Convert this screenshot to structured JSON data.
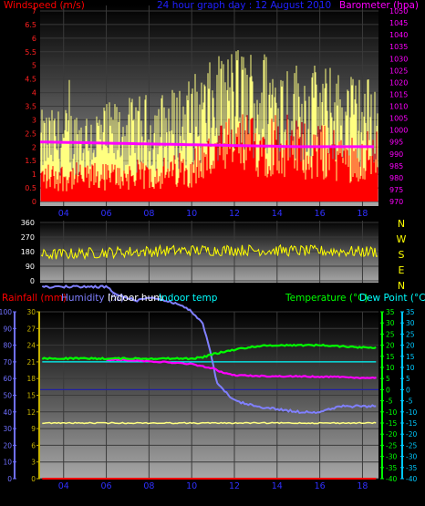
{
  "colors": {
    "wind_avg": "#ff0000",
    "wind_gust": "#ffff80",
    "barometer": "#ff00ff",
    "direction": "#ffff00",
    "rainfall": "#ff0000",
    "humidity": "#8080ff",
    "indoor_hum": "#ffff80",
    "indoor_temp": "#00ffff",
    "temperature": "#00ff00",
    "dew_point": "#ff00ff",
    "rain_axis": "#7070ff",
    "hum_axis": "#c8b400",
    "temp_axis": "#00ff00",
    "dew_axis": "#00c8ff",
    "compass": "#ffff00"
  },
  "chart_data": [
    {
      "type": "bar",
      "title": "24 hour graph day : 12 August 2010",
      "ylabel": "Windspeed (m/s)",
      "y2label": "Barometer (hpa)",
      "x_ticks": [
        "04",
        "06",
        "08",
        "10",
        "12",
        "14",
        "16",
        "18"
      ],
      "ylim": [
        0,
        7
      ],
      "y_ticks": [
        "0",
        "0.5",
        "1",
        "1.5",
        "2",
        "2.5",
        "3",
        "3.5",
        "4",
        "4.5",
        "5",
        "5.5",
        "6",
        "6.5",
        "7"
      ],
      "y2lim": [
        970,
        1050
      ],
      "y2_ticks": [
        "970",
        "975",
        "980",
        "985",
        "990",
        "995",
        "1000",
        "1005",
        "1010",
        "1015",
        "1020",
        "1025",
        "1030",
        "1035",
        "1040",
        "1045",
        "1050"
      ],
      "grid": true,
      "series": [
        {
          "name": "Windspeed",
          "hours": [
            3,
            6,
            9,
            10,
            11,
            12,
            13,
            14,
            15,
            16,
            17,
            18
          ],
          "values": [
            1.2,
            1.2,
            1.4,
            1.7,
            2.2,
            2.7,
            2.8,
            2.9,
            2.6,
            2.4,
            2.3,
            2.2
          ]
        },
        {
          "name": "Gust",
          "hours": [
            3,
            6,
            9,
            10,
            11,
            12,
            13,
            14,
            15,
            16,
            17,
            18
          ],
          "values": [
            2.6,
            2.8,
            3.2,
            3.6,
            4.0,
            4.5,
            4.4,
            4.3,
            4.0,
            3.9,
            3.8,
            3.6
          ]
        },
        {
          "name": "Barometer",
          "hours": [
            3,
            6,
            9,
            12,
            15,
            18
          ],
          "values": [
            995,
            994.5,
            994,
            993.5,
            993,
            993
          ]
        }
      ]
    },
    {
      "type": "line",
      "ylabel_stack": [
        "N",
        "W",
        "S",
        "E",
        "N"
      ],
      "x_ticks": [
        "04",
        "06",
        "08",
        "10",
        "12",
        "14",
        "16",
        "18"
      ],
      "ylim": [
        0,
        360
      ],
      "y_ticks": [
        "0",
        "90",
        "180",
        "270",
        "360"
      ],
      "series": [
        {
          "name": "Wind direction",
          "hours": [
            3,
            6,
            9,
            12,
            15,
            18
          ],
          "values": [
            160,
            175,
            185,
            190,
            185,
            180
          ]
        }
      ]
    },
    {
      "type": "line",
      "legend": [
        "Rainfall (mm)",
        "Humidity (%)",
        "Indoor hum",
        "Indoor temp",
        "Temperature (°C)",
        "Dew Point (°C)"
      ],
      "x_ticks": [
        "04",
        "06",
        "08",
        "10",
        "12",
        "14",
        "16",
        "18"
      ],
      "rain_ticks": [
        "0",
        "10",
        "20",
        "30",
        "40",
        "50",
        "60",
        "70",
        "80",
        "90",
        "100"
      ],
      "hum_ticks": [
        "0",
        "3",
        "6",
        "9",
        "12",
        "15",
        "18",
        "21",
        "24",
        "27",
        "30"
      ],
      "temp_ticks": [
        "-40",
        "-35",
        "-30",
        "-25",
        "-20",
        "-15",
        "-10",
        "-5",
        "0",
        "5",
        "10",
        "15",
        "20",
        "25",
        "30",
        "35"
      ],
      "dew_ticks": [
        "-40",
        "-35",
        "-30",
        "-25",
        "-20",
        "-15",
        "-10",
        "-5",
        "0",
        "5",
        "10",
        "15",
        "20",
        "25",
        "30",
        "35"
      ],
      "temp_lim": [
        -40,
        35
      ],
      "grid": true,
      "series": [
        {
          "name": "Humidity",
          "hours": [
            3,
            5,
            6,
            6.5,
            7.5,
            8,
            9,
            9.5,
            10,
            10.5,
            10.8,
            11.2,
            12,
            13,
            14,
            15,
            16,
            17,
            18.7
          ],
          "values": [
            34.5,
            34.5,
            34.5,
            33,
            32,
            32.7,
            31.8,
            31.2,
            30,
            28,
            24,
            17,
            14,
            13,
            12.5,
            12,
            12,
            13,
            13
          ]
        },
        {
          "name": "Indoor hum",
          "hours": [
            3,
            18.7
          ],
          "values": [
            10,
            10
          ]
        },
        {
          "name": "Indoor temp",
          "hours": [
            3,
            18.7
          ],
          "values": [
            21,
            21
          ]
        },
        {
          "name": "Temperature",
          "hours": [
            3,
            9,
            10,
            10.5,
            11,
            12,
            13,
            14,
            15,
            16,
            17,
            18,
            18.7
          ],
          "values": [
            14,
            14,
            14,
            14.5,
            16,
            18,
            19.5,
            20,
            20,
            20,
            19.5,
            19,
            19
          ]
        },
        {
          "name": "Dew Point",
          "hours": [
            6,
            7,
            8,
            9,
            10,
            10.5,
            11,
            11.5,
            12,
            13,
            14,
            15,
            16,
            17,
            18,
            18.7
          ],
          "values": [
            13.5,
            13.3,
            12.8,
            12.2,
            11.5,
            10.5,
            9.5,
            7.5,
            6.5,
            6.2,
            6,
            6,
            5.8,
            5.8,
            5.2,
            5.2
          ]
        },
        {
          "name": "Rainfall",
          "hours": [
            3,
            18.7
          ],
          "values": [
            0,
            0
          ]
        }
      ]
    }
  ]
}
